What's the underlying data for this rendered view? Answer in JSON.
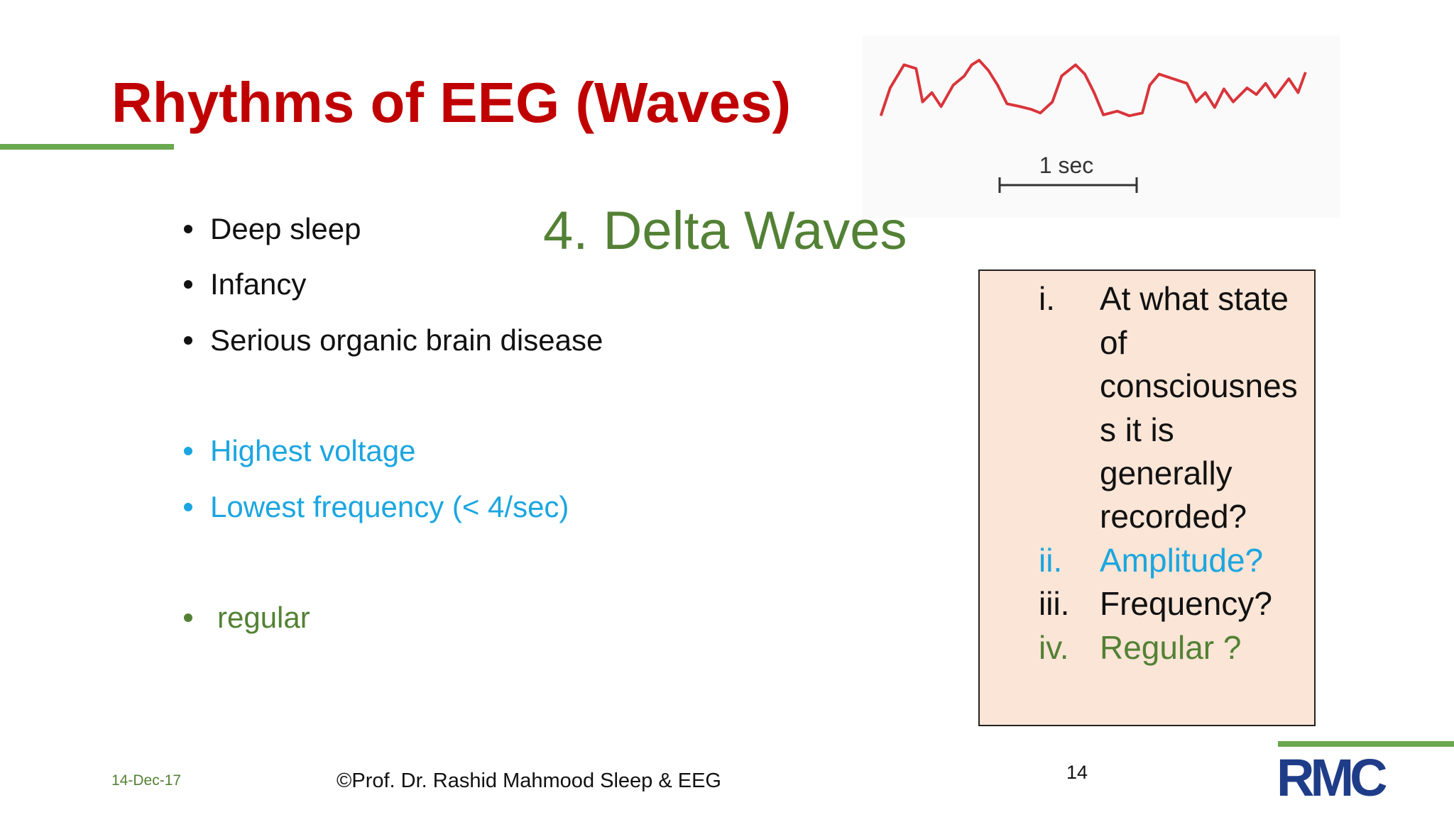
{
  "header": {
    "title": "Rhythms of EEG (Waves)",
    "subtitle": "4. Delta Waves"
  },
  "figure": {
    "scale_label": "1 sec"
  },
  "bullets": [
    "Deep sleep",
    "Infancy",
    "Serious organic brain disease",
    "Highest voltage",
    "Lowest frequency (< 4/sec)",
    "regular"
  ],
  "questions": [
    {
      "numeral": "i.",
      "lines": [
        "At what state",
        "of",
        "consciousnes",
        "s it is",
        "generally",
        "recorded?"
      ]
    },
    {
      "numeral": "ii.",
      "lines": [
        "Amplitude?"
      ]
    },
    {
      "numeral": "iii.",
      "lines": [
        "Frequency?"
      ]
    },
    {
      "numeral": "iv.",
      "lines": [
        "Regular ?"
      ]
    }
  ],
  "footer": {
    "date": "14-Dec-17",
    "credit": "©Prof. Dr. Rashid Mahmood  Sleep & EEG",
    "page": "14",
    "logo": "RMC"
  }
}
